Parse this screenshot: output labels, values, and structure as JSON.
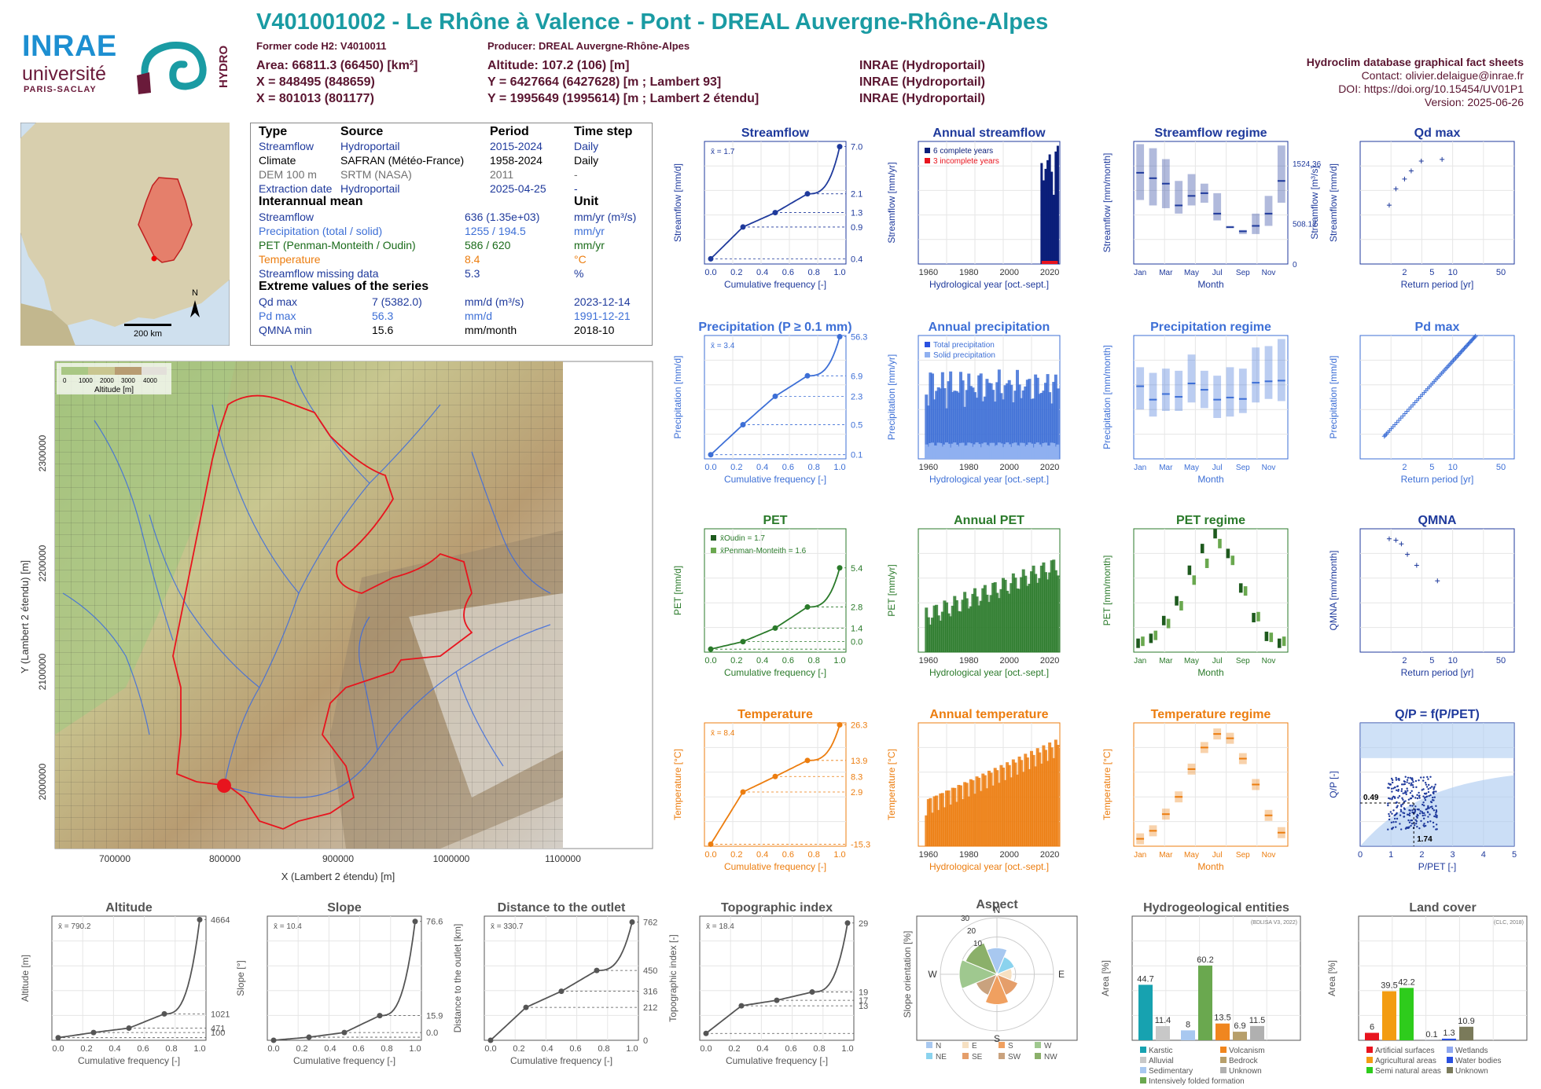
{
  "header": {
    "title": "V401001002 - Le Rhône à Valence - Pont - DREAL Auvergne-Rhône-Alpes",
    "former_code": "Former code H2: V4010011",
    "producer": "Producer: DREAL Auvergne-Rhône-Alpes",
    "area": "Area: 66811.3 (66450) [km²]",
    "altitude": "Altitude: 107.2 (106) [m]",
    "x93": "X = 848495 (848659)",
    "y93": "Y = 6427664 (6427628) [m ; Lambert 93]",
    "x2e": "X = 801013 (801177)",
    "y2e": "Y = 1995649 (1995614) [m ; Lambert 2 étendu]",
    "src1": "INRAE (Hydroportail)",
    "src2": "INRAE (Hydroportail)",
    "src3": "INRAE (Hydroportail)",
    "db": "Hydroclim database graphical fact sheets",
    "contact": "Contact: olivier.delaigue@inrae.fr",
    "doi": "DOI: https://doi.org/10.15454/UV01P1",
    "version": "Version: 2025-06-26"
  },
  "logos": {
    "inrae": "INRAE",
    "universite": "université",
    "paris": "PARIS-SACLAY",
    "hydro": "HYDRO"
  },
  "colors": {
    "title": "#1a9ba3",
    "header": "#5a1530",
    "streamflow": "#1f3a9c",
    "precip": "#3d6fd6",
    "pet": "#2a7a2a",
    "temp": "#ec7d0f",
    "grey": "#555555"
  },
  "overview_map": {
    "scale": "200 km",
    "north": "N"
  },
  "table": {
    "headers": [
      "Type",
      "Source",
      "Period",
      "Time step"
    ],
    "rows": [
      [
        "Streamflow",
        "Hydroportail",
        "2015-2024",
        "Daily"
      ],
      [
        "Climate",
        "SAFRAN (Météo-France)",
        "1958-2024",
        "Daily"
      ],
      [
        "DEM 100 m",
        "SRTM (NASA)",
        "2011",
        "-"
      ],
      [
        "Extraction date",
        "Hydroportail",
        "2025-04-25",
        "-"
      ]
    ],
    "interannual_title": "Interannual mean",
    "unit_title": "Unit",
    "means": [
      [
        "Streamflow",
        "636 (1.35e+03)",
        "mm/yr (m³/s)"
      ],
      [
        "Precipitation (total / solid)",
        "1255 / 194.5",
        "mm/yr"
      ],
      [
        "PET (Penman-Monteith / Oudin)",
        "586 / 620",
        "mm/yr"
      ],
      [
        "Temperature",
        "8.4",
        "°C"
      ],
      [
        "Streamflow missing data",
        "5.3",
        "%"
      ]
    ],
    "extreme_title": "Extreme values of the series",
    "extremes": [
      [
        "Qd max",
        "7 (5382.0)",
        "mm/d (m³/s)",
        "2023-12-14"
      ],
      [
        "Pd max",
        "56.3",
        "mm/d",
        "1991-12-21"
      ],
      [
        "QMNA min",
        "15.6",
        "mm/month",
        "2018-10"
      ]
    ]
  },
  "big_map": {
    "legend_title": "Altitude [m]",
    "legend_ticks": [
      "0",
      "1000",
      "2000",
      "3000",
      "4000"
    ],
    "xlabel": "X (Lambert 2 étendu) [m]",
    "ylabel": "Y (Lambert 2 étendu) [m]",
    "xticks": [
      "700000",
      "800000",
      "900000",
      "1000000",
      "1100000"
    ],
    "yticks": [
      "2000000",
      "2100000",
      "2200000",
      "2300000"
    ]
  },
  "chart_data": [
    {
      "id": "streamflow_fdc",
      "type": "line",
      "title": "Streamflow",
      "xlabel": "Cumulative frequency [-]",
      "ylabel": "Streamflow [mm/d]",
      "mean": "x̄ = 1.7",
      "right_ticks": [
        "7.0",
        "2.1",
        "1.3",
        "0.9",
        "0.4"
      ],
      "points": [
        [
          0,
          0.4
        ],
        [
          0.25,
          0.9
        ],
        [
          0.5,
          1.3
        ],
        [
          0.75,
          2.1
        ],
        [
          1.0,
          7.0
        ]
      ],
      "y_log": true,
      "ylim": [
        0.35,
        8
      ]
    },
    {
      "id": "annual_streamflow",
      "type": "bar",
      "title": "Annual streamflow",
      "xlabel": "Hydrological year [oct.-sept.]",
      "ylabel": "Streamflow [mm/yr]",
      "legend": [
        "6 complete years",
        "3 incomplete years"
      ],
      "x": [
        2016,
        2017,
        2018,
        2019,
        2020,
        2021,
        2022,
        2023,
        2024
      ],
      "values": [
        700,
        580,
        660,
        720,
        760,
        640,
        480,
        780,
        820
      ],
      "ylim": [
        0,
        850
      ],
      "xlim": [
        1955,
        2025
      ]
    },
    {
      "id": "streamflow_regime",
      "type": "bar",
      "title": "Streamflow regime",
      "xlabel": "Month",
      "ylabel": "Streamflow [mm/month]",
      "right_label": "Streamflow [m³/s]",
      "right_ticks": [
        "1524.36",
        "508.12",
        "0"
      ],
      "categories": [
        "Jan",
        "Feb",
        "Mar",
        "Apr",
        "May",
        "Jun",
        "Jul",
        "Aug",
        "Sep",
        "Oct",
        "Nov",
        "Dec"
      ],
      "median": [
        67,
        63,
        59,
        43,
        50,
        52,
        37,
        27,
        24,
        28,
        37,
        61
      ],
      "low": [
        47,
        43,
        41,
        37,
        43,
        45,
        32,
        27,
        22,
        22,
        28,
        45
      ],
      "high": [
        88,
        85,
        77,
        61,
        66,
        59,
        52,
        28,
        25,
        37,
        50,
        87
      ],
      "ylim": [
        0,
        90
      ]
    },
    {
      "id": "qd_max",
      "type": "scatter",
      "title": "Qd max",
      "xlabel": "Return period [yr]",
      "ylabel": "Streamflow [mm/d]",
      "x": [
        1.2,
        1.5,
        2.0,
        2.5,
        3.5,
        7.0
      ],
      "y": [
        3.6,
        4.6,
        5.2,
        5.7,
        6.3,
        6.4
      ],
      "ylim": [
        0,
        7.5
      ]
    },
    {
      "id": "precip_fdc",
      "type": "line",
      "title": "Precipitation (P ≥ 0.1 mm)",
      "xlabel": "Cumulative frequency [-]",
      "ylabel": "Precipitation [mm/d]",
      "mean": "x̄ = 3.4",
      "right_ticks": [
        "56.3",
        "6.9",
        "2.3",
        "0.5",
        "0.1"
      ],
      "points": [
        [
          0,
          0.1
        ],
        [
          0.25,
          0.5
        ],
        [
          0.5,
          2.3
        ],
        [
          0.75,
          6.9
        ],
        [
          1.0,
          56.3
        ]
      ],
      "y_log": true,
      "ylim": [
        0.08,
        60
      ]
    },
    {
      "id": "annual_precip",
      "type": "bar",
      "title": "Annual precipitation",
      "xlabel": "Hydrological year [oct.-sept.]",
      "ylabel": "Precipitation [mm/yr]",
      "legend": [
        "Total precipitation",
        "Solid precipitation"
      ],
      "ylim": [
        0,
        1650
      ]
    },
    {
      "id": "precip_regime",
      "type": "bar",
      "title": "Precipitation regime",
      "xlabel": "Month",
      "ylabel": "Precipitation [mm/month]",
      "categories": [
        "Jan",
        "Feb",
        "Mar",
        "Apr",
        "May",
        "Jun",
        "Jul",
        "Aug",
        "Sep",
        "Oct",
        "Nov",
        "Dec"
      ],
      "median": [
        103,
        84,
        92,
        88,
        107,
        98,
        84,
        87,
        85,
        108,
        110,
        111
      ],
      "low": [
        70,
        60,
        68,
        68,
        80,
        72,
        58,
        60,
        65,
        80,
        85,
        82
      ],
      "high": [
        130,
        122,
        128,
        125,
        148,
        125,
        118,
        130,
        128,
        158,
        160,
        170
      ],
      "ylim": [
        0,
        175
      ]
    },
    {
      "id": "pd_max",
      "type": "scatter",
      "title": "Pd max",
      "xlabel": "Return period [yr]",
      "ylabel": "Precipitation [mm/d]",
      "ylim": [
        15,
        60
      ]
    },
    {
      "id": "pet_fdc",
      "type": "line",
      "title": "PET",
      "xlabel": "Cumulative frequency [-]",
      "ylabel": "PET [mm/d]",
      "legend": [
        "x̄Oudin = 1.7",
        "x̄Penman-Monteith = 1.6"
      ],
      "right_ticks": [
        "5.4",
        "2.8",
        "1.4",
        "0.0"
      ],
      "points": [
        [
          0,
          0.0
        ],
        [
          0.25,
          0.5
        ],
        [
          0.5,
          1.4
        ],
        [
          0.75,
          2.8
        ],
        [
          1.0,
          5.4
        ]
      ],
      "ylim": [
        -0.2,
        8
      ]
    },
    {
      "id": "annual_pet",
      "type": "bar",
      "title": "Annual PET",
      "xlabel": "Hydrological year [oct.-sept.]",
      "ylabel": "PET [mm/yr]",
      "ylim": [
        450,
        830
      ]
    },
    {
      "id": "pet_regime",
      "type": "bar",
      "title": "PET regime",
      "xlabel": "Month",
      "ylabel": "PET [mm/month]",
      "categories": [
        "Jan",
        "Feb",
        "Mar",
        "Apr",
        "May",
        "Jun",
        "Jul",
        "Aug",
        "Sep",
        "Oct",
        "Nov",
        "Dec"
      ],
      "oudin": [
        9,
        14,
        32,
        52,
        83,
        105,
        120,
        100,
        65,
        35,
        16,
        9
      ],
      "pm": [
        11,
        17,
        29,
        47,
        73,
        90,
        110,
        93,
        62,
        36,
        15,
        11
      ],
      "ylim": [
        0,
        125
      ]
    },
    {
      "id": "qmna",
      "type": "scatter",
      "title": "QMNA",
      "xlabel": "Return period [yr]",
      "ylabel": "QMNA [mm/month]",
      "x": [
        1.2,
        1.5,
        1.8,
        2.2,
        3.0,
        6.0
      ],
      "y": [
        24.8,
        24.5,
        23.7,
        21.4,
        19.0,
        15.6
      ],
      "ylim": [
        0,
        27
      ]
    },
    {
      "id": "temp_fdc",
      "type": "line",
      "title": "Temperature",
      "xlabel": "Cumulative frequency [-]",
      "ylabel": "Temperature [°C]",
      "mean": "x̄ = 8.4",
      "right_ticks": [
        "26.3",
        "13.9",
        "8.3",
        "2.9",
        "-15.3"
      ],
      "points": [
        [
          0,
          -15.3
        ],
        [
          0.25,
          2.9
        ],
        [
          0.5,
          8.3
        ],
        [
          0.75,
          13.9
        ],
        [
          1.0,
          26.3
        ]
      ],
      "ylim": [
        -16,
        27
      ]
    },
    {
      "id": "annual_temp",
      "type": "bar",
      "title": "Annual temperature",
      "xlabel": "Hydrological year [oct.-sept.]",
      "ylabel": "Temperature [°C]",
      "ylim": [
        6,
        10.8
      ]
    },
    {
      "id": "temp_regime",
      "type": "bar",
      "title": "Temperature regime",
      "xlabel": "Month",
      "ylabel": "Temperature [°C]",
      "categories": [
        "Jan",
        "Feb",
        "Mar",
        "Apr",
        "May",
        "Jun",
        "Jul",
        "Aug",
        "Sep",
        "Oct",
        "Nov",
        "Dec"
      ],
      "median": [
        0.2,
        1.5,
        4.2,
        7.0,
        11.5,
        15.0,
        17.2,
        16.5,
        13.2,
        9.0,
        4.0,
        1.2
      ],
      "ylim": [
        -1,
        19
      ]
    },
    {
      "id": "budyko",
      "type": "scatter",
      "title": "Q/P = f(P/PET)",
      "xlabel": "P/PET [-]",
      "ylabel": "Q/P [-]",
      "annot": [
        "0.49",
        "1.74"
      ],
      "xlim": [
        0,
        5
      ],
      "ylim": [
        0,
        1.4
      ]
    },
    {
      "id": "altitude_cdf",
      "type": "line",
      "title": "Altitude",
      "xlabel": "Cumulative frequency [-]",
      "ylabel": "Altitude [m]",
      "mean": "x̄ = 790.2",
      "right_ticks": [
        "4664",
        "1021",
        "471",
        "100"
      ],
      "points": [
        [
          0,
          100
        ],
        [
          0.25,
          300
        ],
        [
          0.5,
          471
        ],
        [
          0.75,
          1021
        ],
        [
          1.0,
          4664
        ]
      ],
      "ylim": [
        0,
        4800
      ]
    },
    {
      "id": "slope_cdf",
      "type": "line",
      "title": "Slope",
      "xlabel": "Cumulative frequency [-]",
      "ylabel": "Slope [°]",
      "mean": "x̄ = 10.4",
      "right_ticks": [
        "76.6",
        "15.9",
        "0.0"
      ],
      "points": [
        [
          0,
          0
        ],
        [
          0.25,
          2
        ],
        [
          0.5,
          5
        ],
        [
          0.75,
          15.9
        ],
        [
          1.0,
          76.6
        ]
      ],
      "ylim": [
        0,
        80
      ]
    },
    {
      "id": "distance_cdf",
      "type": "line",
      "title": "Distance to the outlet",
      "xlabel": "Cumulative frequency [-]",
      "ylabel": "Distance to the outlet [km]",
      "mean": "x̄ = 330.7",
      "right_ticks": [
        "762",
        "450",
        "316",
        "212",
        "0"
      ],
      "points": [
        [
          0,
          0
        ],
        [
          0.25,
          212
        ],
        [
          0.5,
          316
        ],
        [
          0.75,
          450
        ],
        [
          1.0,
          762
        ]
      ],
      "ylim": [
        0,
        800
      ]
    },
    {
      "id": "topo_cdf",
      "type": "line",
      "title": "Topographic index",
      "xlabel": "Cumulative frequency [-]",
      "ylabel": "Topographic index [-]",
      "mean": "x̄ = 18.4",
      "right_ticks": [
        "29",
        "19",
        "17",
        "13"
      ],
      "points": [
        [
          0,
          13
        ],
        [
          0.25,
          17
        ],
        [
          0.5,
          17.8
        ],
        [
          0.75,
          19
        ],
        [
          1.0,
          29
        ]
      ],
      "ylim": [
        12,
        30
      ]
    },
    {
      "id": "aspect",
      "type": "pie",
      "title": "Aspect",
      "ylabel": "Slope orientation [%]",
      "labels": [
        "N",
        "E",
        "S",
        "W"
      ],
      "rings": [
        "10",
        "20",
        "30"
      ],
      "legend": [
        "N",
        "E",
        "S",
        "W",
        "NE",
        "SE",
        "SW",
        "NW"
      ]
    },
    {
      "id": "hydrogeol",
      "type": "bar",
      "title": "Hydrogeological entities",
      "ylabel": "Area [%]",
      "note": "(BDLISA V3, 2022)",
      "categories": [
        "Karstic",
        "Alluvial",
        "Sedimentary",
        "Intensively folded formation",
        "Volcanism",
        "Bedrock",
        "Unknown"
      ],
      "values": [
        44.7,
        11.4,
        8,
        60.2,
        13.5,
        6.9,
        11.5
      ],
      "bar_colors": [
        "#17a2b0",
        "#c8c8c8",
        "#a8c8f0",
        "#6aa84f",
        "#f0861f",
        "#b79f6b",
        "#b0b0b0"
      ],
      "ylim": [
        0,
        100
      ]
    },
    {
      "id": "landcover",
      "type": "bar",
      "title": "Land cover",
      "ylabel": "Area [%]",
      "note": "(CLC, 2018)",
      "categories": [
        "Artificial surfaces",
        "Agricultural areas",
        "Semi natural areas",
        "Wetlands",
        "Water bodies",
        "Unknown"
      ],
      "values": [
        6,
        39.5,
        42.2,
        0.1,
        1.3,
        10.9
      ],
      "bar_colors": [
        "#e8141e",
        "#f39c12",
        "#2ecc1c",
        "#8fa8f0",
        "#2a50e0",
        "#7a7a5a"
      ],
      "ylim": [
        0,
        100
      ]
    }
  ]
}
